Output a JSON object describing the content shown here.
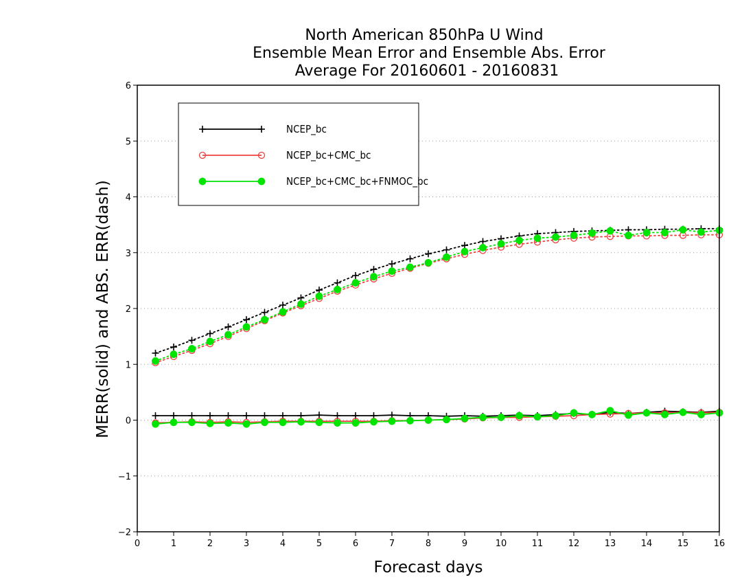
{
  "chart_data": {
    "type": "line",
    "title": [
      "North American 850hPa U Wind",
      "Ensemble Mean Error and Ensemble Abs. Error",
      "Average For 20160601 - 20160831"
    ],
    "xlabel": "Forecast days",
    "ylabel": "MERR(solid) and ABS. ERR(dash)",
    "xlim": [
      0,
      16
    ],
    "ylim": [
      -2,
      6
    ],
    "xticks": [
      0,
      1,
      2,
      3,
      4,
      5,
      6,
      7,
      8,
      9,
      10,
      11,
      12,
      13,
      14,
      15,
      16
    ],
    "yticks": [
      -2,
      -1,
      0,
      1,
      2,
      3,
      4,
      5,
      6
    ],
    "grid": "horizontal dotted",
    "legend_position": "top-left",
    "x": [
      0.5,
      1,
      1.5,
      2,
      2.5,
      3,
      3.5,
      4,
      4.5,
      5,
      5.5,
      6,
      6.5,
      7,
      7.5,
      8,
      8.5,
      9,
      9.5,
      10,
      10.5,
      11,
      11.5,
      12,
      12.5,
      13,
      13.5,
      14,
      14.5,
      15,
      15.5,
      16
    ],
    "series": [
      {
        "name": "NCEP_bc",
        "color": "#000000",
        "marker": "plus",
        "abs_error": [
          1.2,
          1.31,
          1.43,
          1.55,
          1.67,
          1.8,
          1.93,
          2.06,
          2.19,
          2.33,
          2.46,
          2.59,
          2.7,
          2.8,
          2.89,
          2.98,
          3.05,
          3.13,
          3.2,
          3.25,
          3.3,
          3.34,
          3.36,
          3.38,
          3.39,
          3.4,
          3.41,
          3.41,
          3.42,
          3.42,
          3.43,
          3.43
        ],
        "mean_error": [
          0.08,
          0.08,
          0.08,
          0.08,
          0.08,
          0.08,
          0.08,
          0.08,
          0.08,
          0.09,
          0.08,
          0.08,
          0.08,
          0.09,
          0.08,
          0.08,
          0.07,
          0.08,
          0.07,
          0.08,
          0.09,
          0.08,
          0.1,
          0.12,
          0.1,
          0.14,
          0.12,
          0.14,
          0.16,
          0.15,
          0.14,
          0.16
        ]
      },
      {
        "name": "NCEP_bc+CMC_bc",
        "color": "#ef3f3f",
        "marker": "open-circle",
        "abs_error": [
          1.03,
          1.14,
          1.25,
          1.37,
          1.5,
          1.64,
          1.78,
          1.92,
          2.05,
          2.18,
          2.31,
          2.42,
          2.53,
          2.63,
          2.72,
          2.81,
          2.89,
          2.97,
          3.04,
          3.1,
          3.15,
          3.19,
          3.23,
          3.26,
          3.28,
          3.29,
          3.3,
          3.3,
          3.31,
          3.31,
          3.32,
          3.32
        ],
        "mean_error": [
          -0.05,
          -0.04,
          -0.03,
          -0.04,
          -0.03,
          -0.04,
          -0.03,
          -0.02,
          -0.02,
          -0.02,
          -0.02,
          -0.02,
          -0.02,
          -0.01,
          -0.01,
          0.0,
          0.01,
          0.02,
          0.04,
          0.05,
          0.05,
          0.06,
          0.07,
          0.08,
          0.1,
          0.11,
          0.12,
          0.13,
          0.13,
          0.14,
          0.13,
          0.14
        ]
      },
      {
        "name": "NCEP_bc+CMC_bc+FNMOC_bc",
        "color": "#00e400",
        "marker": "filled-circle",
        "abs_error": [
          1.06,
          1.18,
          1.28,
          1.41,
          1.53,
          1.67,
          1.8,
          1.94,
          2.08,
          2.22,
          2.34,
          2.46,
          2.57,
          2.67,
          2.74,
          2.82,
          2.92,
          3.02,
          3.09,
          3.16,
          3.22,
          3.26,
          3.28,
          3.31,
          3.35,
          3.39,
          3.31,
          3.36,
          3.36,
          3.41,
          3.37,
          3.4
        ],
        "mean_error": [
          -0.07,
          -0.04,
          -0.04,
          -0.06,
          -0.05,
          -0.07,
          -0.04,
          -0.04,
          -0.03,
          -0.04,
          -0.05,
          -0.05,
          -0.03,
          -0.02,
          -0.01,
          0.0,
          0.01,
          0.03,
          0.05,
          0.05,
          0.08,
          0.06,
          0.08,
          0.13,
          0.1,
          0.17,
          0.09,
          0.13,
          0.1,
          0.14,
          0.1,
          0.13
        ]
      }
    ]
  }
}
